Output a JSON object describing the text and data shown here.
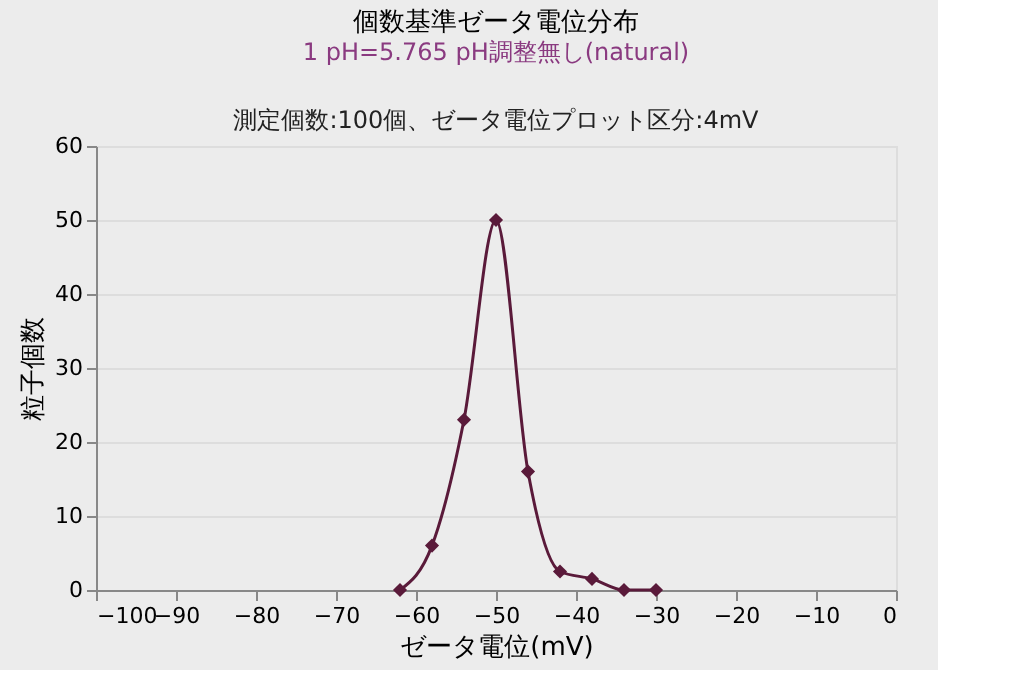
{
  "chart_data": {
    "type": "line",
    "title": "個数基準ゼータ電位分布",
    "subtitle": "1 pH=5.765 pH調整無し(natural)",
    "annotations": [
      "測定個数:100個、ゼータ電位プロット区分:4mV"
    ],
    "xlabel": "ゼータ電位(mV)",
    "ylabel": "粒子個数",
    "x": [
      -62,
      -58,
      -54,
      -50,
      -46,
      -42,
      -38,
      -34,
      -30
    ],
    "series": [
      {
        "color": "#5a1a3a",
        "values": [
          0,
          6,
          23,
          50,
          16,
          2.5,
          1.5,
          0,
          0
        ]
      }
    ],
    "xlim": [
      -100,
      0
    ],
    "xticks": [
      -100,
      -90,
      -80,
      -70,
      -60,
      -50,
      -40,
      -30,
      -20,
      -10,
      0
    ],
    "ylim": [
      0,
      60
    ],
    "yticks": [
      0,
      10,
      20,
      30,
      40,
      50,
      60
    ],
    "grid": "y",
    "marker": "diamond",
    "line_style": "solid"
  }
}
